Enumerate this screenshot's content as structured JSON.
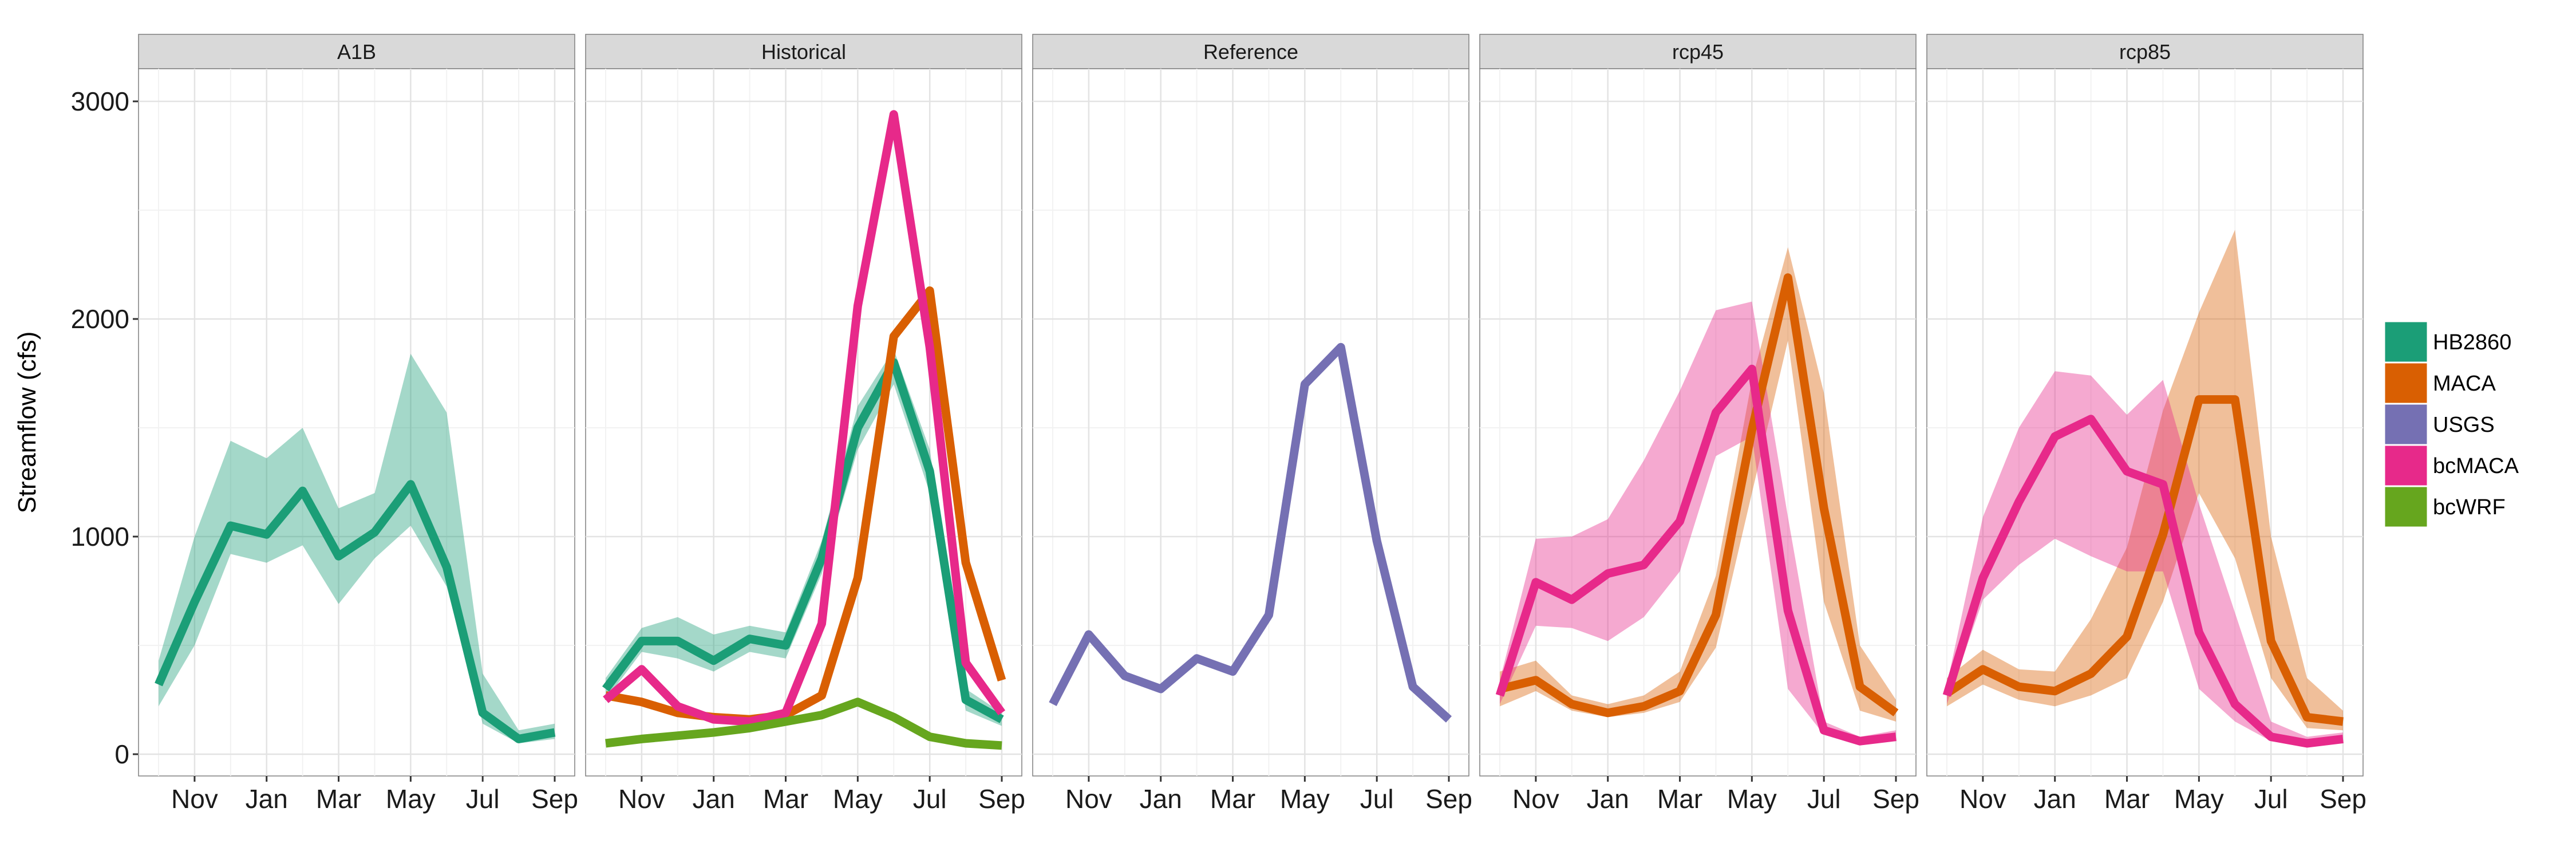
{
  "chart_data": {
    "type": "line",
    "facets": [
      "A1B",
      "Historical",
      "Reference",
      "rcp45",
      "rcp85"
    ],
    "xlabel": "",
    "ylabel": "Streamflow (cfs)",
    "ylim": [
      -100,
      3150
    ],
    "y_ticks": [
      0,
      1000,
      2000,
      3000
    ],
    "x_months": [
      "Oct",
      "Nov",
      "Dec",
      "Jan",
      "Feb",
      "Mar",
      "Apr",
      "May",
      "Jun",
      "Jul",
      "Aug",
      "Sep"
    ],
    "x_tick_labels": [
      "Nov",
      "Jan",
      "Mar",
      "May",
      "Jul",
      "Sep"
    ],
    "grid": true,
    "legend_position": "right",
    "legend": [
      {
        "name": "HB2860",
        "color": "#1b9e77"
      },
      {
        "name": "MACA",
        "color": "#d95f02"
      },
      {
        "name": "USGS",
        "color": "#7570b3"
      },
      {
        "name": "bcMACA",
        "color": "#e7298a"
      },
      {
        "name": "bcWRF",
        "color": "#66a61e"
      }
    ],
    "panels": [
      {
        "facet": "A1B",
        "series": [
          {
            "name": "HB2860",
            "color": "#1b9e77",
            "values": [
              320,
              700,
              1050,
              1010,
              1210,
              910,
              1020,
              1240,
              860,
              190,
              70,
              100
            ],
            "lower": [
              220,
              500,
              920,
              880,
              960,
              690,
              900,
              1050,
              770,
              140,
              50,
              70
            ],
            "upper": [
              430,
              1000,
              1440,
              1360,
              1500,
              1130,
              1200,
              1840,
              1570,
              370,
              110,
              140
            ]
          }
        ]
      },
      {
        "facet": "Historical",
        "series": [
          {
            "name": "HB2860",
            "color": "#1b9e77",
            "values": [
              300,
              520,
              520,
              430,
              530,
              500,
              900,
              1500,
              1800,
              1300,
              250,
              160
            ],
            "lower": [
              250,
              470,
              440,
              380,
              470,
              440,
              830,
              1400,
              1700,
              1200,
              200,
              130
            ],
            "upper": [
              350,
              580,
              630,
              550,
              590,
              560,
              980,
              1600,
              1860,
              1400,
              300,
              190
            ]
          },
          {
            "name": "MACA",
            "color": "#d95f02",
            "values": [
              270,
              240,
              190,
              170,
              160,
              180,
              270,
              810,
              1920,
              2130,
              880,
              340
            ]
          },
          {
            "name": "bcMACA",
            "color": "#e7298a",
            "values": [
              250,
              390,
              220,
              160,
              150,
              190,
              600,
              2060,
              2940,
              1870,
              420,
              190
            ]
          },
          {
            "name": "bcWRF",
            "color": "#66a61e",
            "values": [
              50,
              70,
              85,
              100,
              120,
              150,
              180,
              240,
              170,
              80,
              50,
              40
            ]
          }
        ]
      },
      {
        "facet": "Reference",
        "series": [
          {
            "name": "USGS",
            "color": "#7570b3",
            "values": [
              230,
              550,
              360,
              300,
              440,
              380,
              640,
              1700,
              1870,
              980,
              310,
              160
            ]
          }
        ]
      },
      {
        "facet": "rcp45",
        "series": [
          {
            "name": "MACA",
            "color": "#d95f02",
            "values": [
              300,
              340,
              230,
              190,
              220,
              290,
              640,
              1490,
              2190,
              1130,
              310,
              190
            ],
            "lower": [
              220,
              290,
              200,
              170,
              190,
              240,
              490,
              1200,
              1900,
              700,
              200,
              150
            ],
            "upper": [
              380,
              430,
              270,
              230,
              270,
              380,
              820,
              1720,
              2330,
              1660,
              500,
              250
            ]
          },
          {
            "name": "bcMACA",
            "color": "#e7298a",
            "values": [
              270,
              790,
              710,
              830,
              870,
              1070,
              1570,
              1770,
              660,
              110,
              60,
              80
            ],
            "lower": [
              230,
              590,
              580,
              520,
              630,
              840,
              1370,
              1460,
              300,
              90,
              50,
              60
            ],
            "upper": [
              340,
              990,
              1000,
              1080,
              1350,
              1670,
              2040,
              2080,
              1090,
              150,
              80,
              110
            ]
          }
        ]
      },
      {
        "facet": "rcp85",
        "series": [
          {
            "name": "MACA",
            "color": "#d95f02",
            "values": [
              280,
              390,
              310,
              290,
              370,
              540,
              1010,
              1630,
              1630,
              520,
              170,
              150
            ],
            "lower": [
              220,
              320,
              250,
              220,
              270,
              350,
              700,
              1200,
              900,
              350,
              120,
              110
            ],
            "upper": [
              350,
              480,
              390,
              380,
              620,
              950,
              1580,
              2030,
              2410,
              1000,
              350,
              200
            ]
          },
          {
            "name": "bcMACA",
            "color": "#e7298a",
            "values": [
              270,
              810,
              1160,
              1460,
              1540,
              1300,
              1240,
              560,
              230,
              80,
              50,
              70
            ],
            "lower": [
              230,
              710,
              870,
              990,
              910,
              840,
              840,
              300,
              150,
              60,
              40,
              60
            ],
            "upper": [
              320,
              1090,
              1500,
              1760,
              1740,
              1560,
              1720,
              1150,
              650,
              150,
              80,
              100
            ]
          }
        ]
      }
    ]
  }
}
